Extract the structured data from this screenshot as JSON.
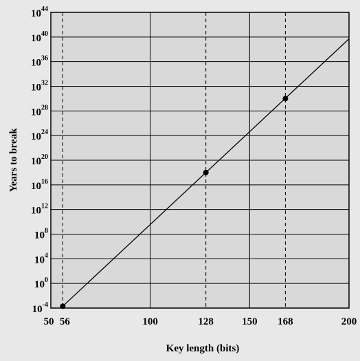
{
  "chart_data": {
    "type": "line",
    "title": "",
    "xlabel": "Key length (bits)",
    "ylabel": "Years to break",
    "xlim": [
      50,
      200
    ],
    "ylim_log10": [
      -4,
      44
    ],
    "y_scale": "log",
    "x_ticks": [
      50,
      56,
      100,
      128,
      150,
      168,
      200
    ],
    "x_tick_labels": [
      "50",
      "56",
      "100",
      "128",
      "150",
      "168",
      "200"
    ],
    "y_ticks_exponent": [
      -4,
      0,
      4,
      8,
      12,
      16,
      20,
      24,
      28,
      32,
      36,
      40,
      44
    ],
    "y_tick_base": "10",
    "grid": true,
    "line": {
      "x": [
        56,
        200
      ],
      "log10_y": [
        -3.7,
        39.7
      ]
    },
    "points": [
      {
        "x": 56,
        "log10_y": -3.7
      },
      {
        "x": 128,
        "log10_y": 18.0
      },
      {
        "x": 168,
        "log10_y": 30.0
      }
    ],
    "dashed_verticals": [
      56,
      128,
      168
    ],
    "colors": {
      "plot_background": "#d9d9d9",
      "page_background": "#e8e8e8",
      "line": "#000000"
    }
  }
}
